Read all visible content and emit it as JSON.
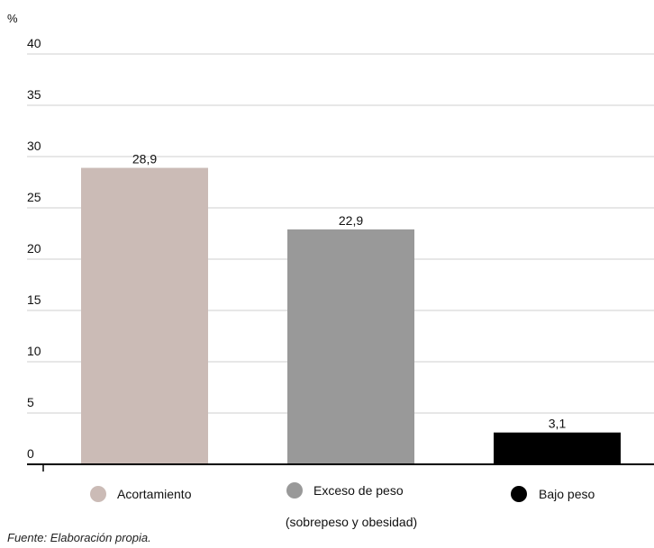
{
  "chart_data": {
    "type": "bar",
    "unit_label": "%",
    "ylim": [
      0,
      40
    ],
    "y_ticks": [
      0,
      5,
      10,
      15,
      20,
      25,
      30,
      35,
      40
    ],
    "grid": true,
    "categories": [
      "Acortamiento",
      "Exceso de peso (sobrepeso y obesidad)",
      "Bajo peso"
    ],
    "values": [
      28.9,
      22.9,
      3.1
    ],
    "value_labels": [
      "28,9",
      "22,9",
      "3,1"
    ],
    "colors": [
      "#cbbbb6",
      "#999999",
      "#000000"
    ],
    "legend": [
      {
        "label": "Acortamiento",
        "color": "#cbbbb6"
      },
      {
        "label": "Exceso de peso",
        "label_line2": "(sobrepeso y obesidad)",
        "color": "#999999"
      },
      {
        "label": "Bajo peso",
        "color": "#000000"
      }
    ],
    "legend_position": "bottom"
  },
  "source_note": "Fuente: Elaboración propia."
}
